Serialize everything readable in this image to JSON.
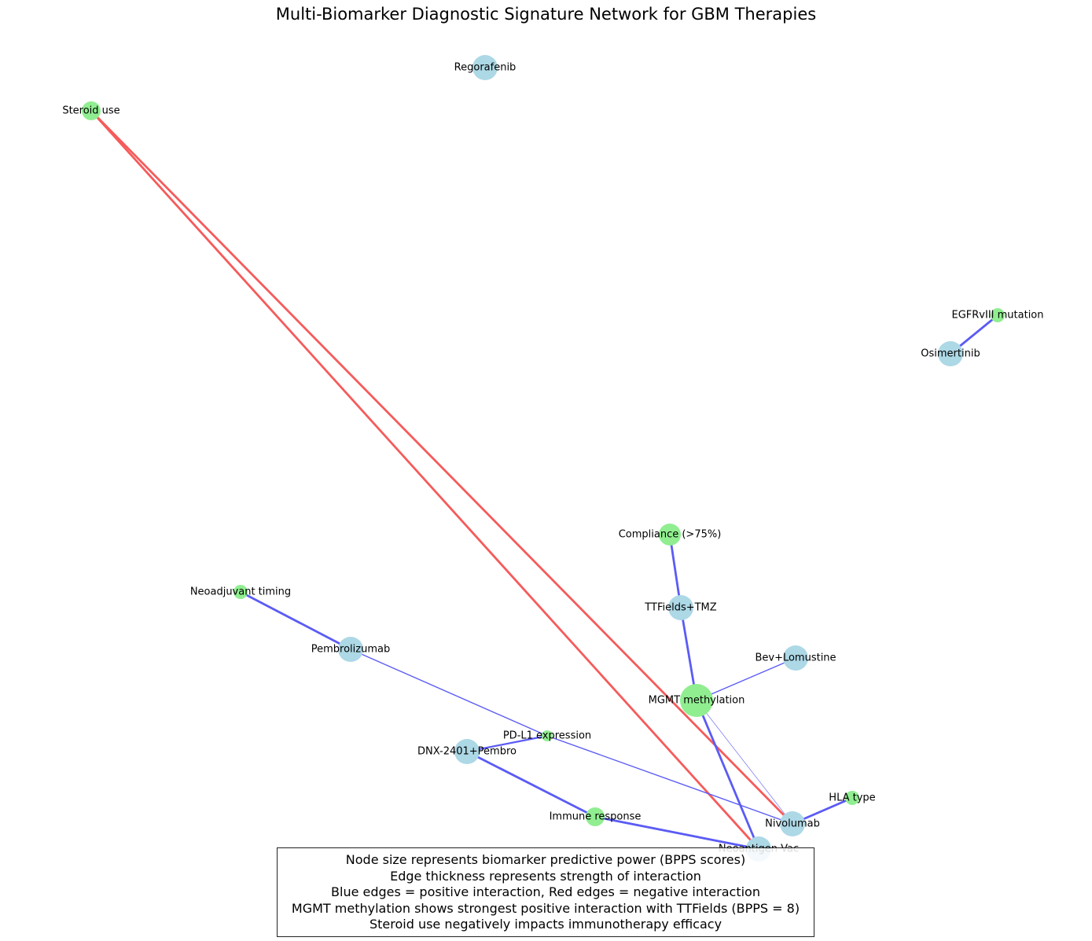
{
  "title": "Multi-Biomarker Diagnostic Signature Network for GBM Therapies",
  "colors": {
    "therapy_node": "#add8e6",
    "biomarker_node": "#90ee90",
    "positive_edge": "#5b5bf5",
    "negative_edge": "#f55b5b"
  },
  "nodes": [
    {
      "id": "regorafenib",
      "label": "Regorafenib",
      "kind": "therapy"
    },
    {
      "id": "steroid",
      "label": "Steroid use",
      "kind": "biomarker",
      "size": "medium"
    },
    {
      "id": "egfr",
      "label": "EGFRvIII mutation",
      "kind": "biomarker",
      "size": "small"
    },
    {
      "id": "osimertinib",
      "label": "Osimertinib",
      "kind": "therapy"
    },
    {
      "id": "compliance",
      "label": "Compliance (>75%)",
      "kind": "biomarker",
      "size": "large"
    },
    {
      "id": "neoadjuvant",
      "label": "Neoadjuvant timing",
      "kind": "biomarker",
      "size": "small"
    },
    {
      "id": "ttfields",
      "label": "TTFields+TMZ",
      "kind": "therapy"
    },
    {
      "id": "pembrolizumab",
      "label": "Pembrolizumab",
      "kind": "therapy"
    },
    {
      "id": "bevlomustine",
      "label": "Bev+Lomustine",
      "kind": "therapy"
    },
    {
      "id": "mgmt",
      "label": "MGMT methylation",
      "kind": "biomarker",
      "size": "xlarge"
    },
    {
      "id": "pdl1",
      "label": "PD-L1 expression",
      "kind": "biomarker",
      "size": "tiny"
    },
    {
      "id": "dnx",
      "label": "DNX-2401+Pembro",
      "kind": "therapy"
    },
    {
      "id": "hla",
      "label": "HLA type",
      "kind": "biomarker",
      "size": "small"
    },
    {
      "id": "immune",
      "label": "Immune response",
      "kind": "biomarker",
      "size": "medium"
    },
    {
      "id": "nivolumab",
      "label": "Nivolumab",
      "kind": "therapy"
    },
    {
      "id": "neoantigen",
      "label": "Neoantigen Vac",
      "kind": "therapy"
    }
  ],
  "edges": [
    {
      "source": "steroid",
      "target": "neoantigen",
      "sign": "negative",
      "strength": "strong"
    },
    {
      "source": "steroid",
      "target": "nivolumab",
      "sign": "negative",
      "strength": "strong"
    },
    {
      "source": "egfr",
      "target": "osimertinib",
      "sign": "positive",
      "strength": "strong"
    },
    {
      "source": "compliance",
      "target": "ttfields",
      "sign": "positive",
      "strength": "strong"
    },
    {
      "source": "ttfields",
      "target": "mgmt",
      "sign": "positive",
      "strength": "strong"
    },
    {
      "source": "neoadjuvant",
      "target": "pembrolizumab",
      "sign": "positive",
      "strength": "strong"
    },
    {
      "source": "pembrolizumab",
      "target": "pdl1",
      "sign": "positive",
      "strength": "weak"
    },
    {
      "source": "pdl1",
      "target": "nivolumab",
      "sign": "positive",
      "strength": "weak"
    },
    {
      "source": "pdl1",
      "target": "dnx",
      "sign": "positive",
      "strength": "medium"
    },
    {
      "source": "mgmt",
      "target": "bevlomustine",
      "sign": "positive",
      "strength": "weak"
    },
    {
      "source": "mgmt",
      "target": "neoantigen",
      "sign": "positive",
      "strength": "strong"
    },
    {
      "source": "mgmt",
      "target": "nivolumab",
      "sign": "positive",
      "strength": "faint"
    },
    {
      "source": "dnx",
      "target": "immune",
      "sign": "positive",
      "strength": "strong"
    },
    {
      "source": "immune",
      "target": "neoantigen",
      "sign": "positive",
      "strength": "strong"
    },
    {
      "source": "nivolumab",
      "target": "hla",
      "sign": "positive",
      "strength": "strong"
    }
  ],
  "legend": {
    "lines": [
      "Node size represents biomarker predictive power (BPPS scores)",
      "Edge thickness represents strength of interaction",
      "Blue edges = positive interaction, Red edges = negative interaction",
      "MGMT methylation shows strongest positive interaction with TTFields (BPPS = 8)",
      "Steroid use negatively impacts immunotherapy efficacy"
    ]
  }
}
